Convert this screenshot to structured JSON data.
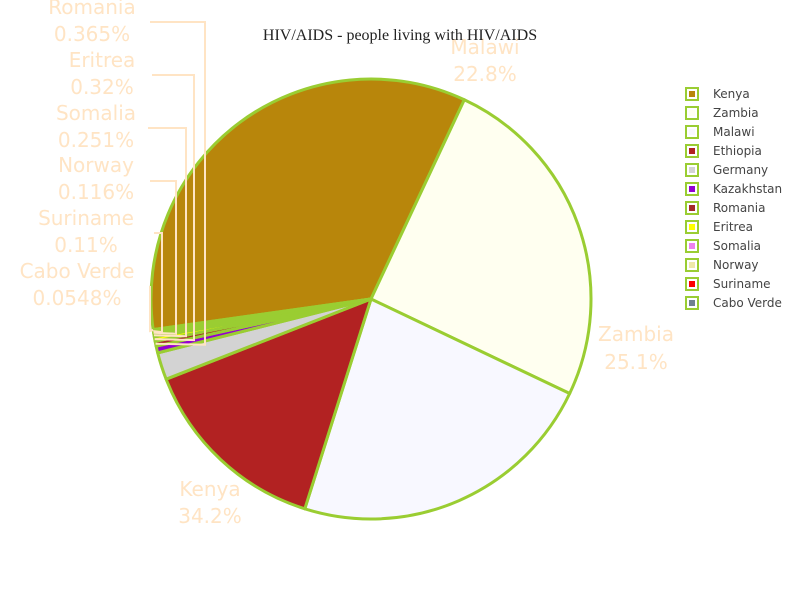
{
  "chart_data": {
    "type": "pie",
    "title": "HIV/AIDS - people living with HIV/AIDS",
    "slices": [
      {
        "label": "Kenya",
        "percent_text": "34.2%",
        "value": 34.2,
        "color": "#b8860b"
      },
      {
        "label": "Zambia",
        "percent_text": "25.1%",
        "value": 25.1,
        "color": "#fffff0"
      },
      {
        "label": "Malawi",
        "percent_text": "22.8%",
        "value": 22.8,
        "color": "#f8f8ff"
      },
      {
        "label": "Ethiopia",
        "percent_text": "",
        "value": 14.2,
        "color": "#b22222"
      },
      {
        "label": "Germany",
        "percent_text": "",
        "value": 2.0,
        "color": "#d3d3d3"
      },
      {
        "label": "Kazakhstan",
        "percent_text": "",
        "value": 0.5,
        "color": "#9400d3"
      },
      {
        "label": "Romania",
        "percent_text": "0.365%",
        "value": 0.365,
        "color": "#a52a2a"
      },
      {
        "label": "Eritrea",
        "percent_text": "0.32%",
        "value": 0.32,
        "color": "#ffff00"
      },
      {
        "label": "Somalia",
        "percent_text": "0.251%",
        "value": 0.251,
        "color": "#ee82ee"
      },
      {
        "label": "Norway",
        "percent_text": "0.116%",
        "value": 0.116,
        "color": "#eee8aa"
      },
      {
        "label": "Suriname",
        "percent_text": "0.11%",
        "value": 0.11,
        "color": "#ff0000"
      },
      {
        "label": "Cabo Verde",
        "percent_text": "0.0548%",
        "value": 0.0548,
        "color": "#708090"
      }
    ],
    "slice_outline_color": "#9acd32",
    "label_color": "#ffe4c4",
    "legend_position": "right"
  }
}
